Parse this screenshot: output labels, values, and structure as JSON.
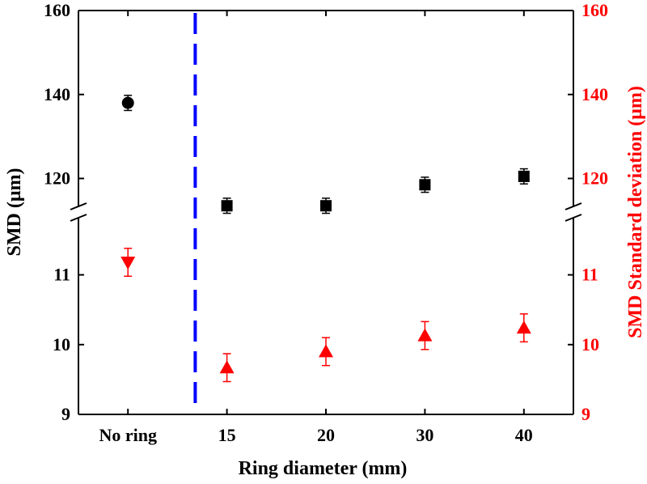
{
  "chart_data": {
    "type": "scatter",
    "title": "",
    "xlabel": "Ring diameter (mm)",
    "ylabel_left": "SMD (μm)",
    "ylabel_right": "SMD Standard deviation (μm)",
    "categories": [
      "No ring",
      "15",
      "20",
      "30",
      "40"
    ],
    "axis_break": true,
    "upper_panel": {
      "ylim": [
        112,
        160
      ],
      "ticks": [
        "120",
        "140",
        "160"
      ],
      "tick_values": [
        120,
        140,
        160
      ]
    },
    "lower_panel": {
      "ylim": [
        9,
        11.9
      ],
      "ticks": [
        "9",
        "10",
        "11"
      ],
      "tick_values": [
        9,
        10,
        11
      ]
    },
    "series": [
      {
        "name": "SMD",
        "panel": "upper",
        "marker": "circle",
        "color": "#000000",
        "points": [
          {
            "category": "No ring",
            "value": 138,
            "error": 1.8
          }
        ]
      },
      {
        "name": "SMD",
        "panel": "upper",
        "marker": "square",
        "color": "#000000",
        "points": [
          {
            "category": "15",
            "value": 113.5,
            "error": 1.8
          },
          {
            "category": "20",
            "value": 113.5,
            "error": 1.8
          },
          {
            "category": "30",
            "value": 118.5,
            "error": 1.8
          },
          {
            "category": "40",
            "value": 120.5,
            "error": 1.8
          }
        ]
      },
      {
        "name": "SMD Standard deviation",
        "panel": "lower",
        "marker": "triangle-down",
        "color": "#ff0000",
        "points": [
          {
            "category": "No ring",
            "value": 11.18,
            "error": 0.2
          }
        ]
      },
      {
        "name": "SMD Standard deviation",
        "panel": "lower",
        "marker": "triangle-up",
        "color": "#ff0000",
        "points": [
          {
            "category": "15",
            "value": 9.67,
            "error": 0.2
          },
          {
            "category": "20",
            "value": 9.9,
            "error": 0.2
          },
          {
            "category": "30",
            "value": 10.13,
            "error": 0.2
          },
          {
            "category": "40",
            "value": 10.24,
            "error": 0.2
          }
        ]
      }
    ],
    "divider": {
      "between": [
        "No ring",
        "15"
      ],
      "style": "dashed",
      "color": "#0000ff"
    },
    "colors": {
      "left_axis": "#000000",
      "right_axis": "#ff0000"
    }
  }
}
